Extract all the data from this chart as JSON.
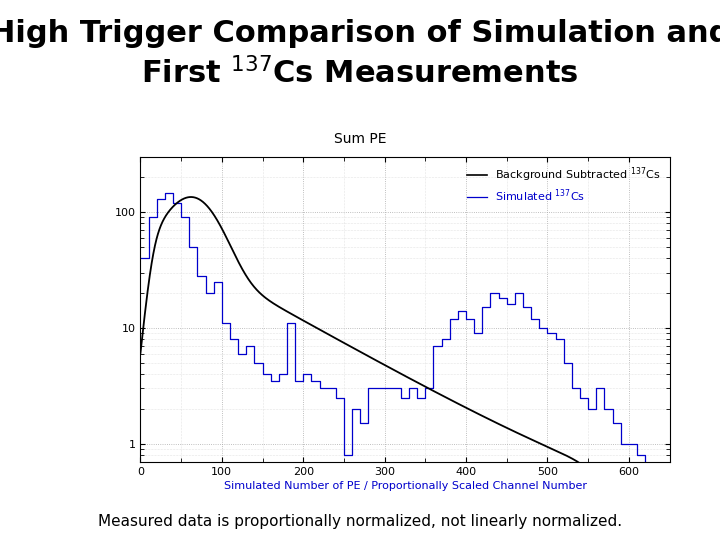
{
  "title_line1": "High Trigger Comparison of Simulation and",
  "title_line2": "First $^{137}$Cs Measurements",
  "subtitle": "Sum PE",
  "xlabel": "Simulated Number of PE / Proportionally Scaled Channel Number",
  "footnote": "Measured data is proportionally normalized, not linearly normalized.",
  "legend_bg_label": "Background Subtracted $^{137}$Cs",
  "legend_sim_label": "Simulated $^{137}$Cs",
  "xmin": 0,
  "xmax": 650,
  "ymin": 0.7,
  "ymax": 300,
  "bg_color": "#ffffff",
  "sim_color": "#000000",
  "meas_color": "#0000cc",
  "title_fontsize": 22,
  "subtitle_fontsize": 10,
  "axis_fontsize": 8,
  "footnote_fontsize": 11,
  "sim_bins": [
    0,
    10,
    20,
    30,
    40,
    50,
    60,
    70,
    80,
    90,
    100,
    110,
    120,
    130,
    140,
    150,
    160,
    170,
    180,
    190,
    200,
    210,
    220,
    230,
    240,
    250,
    260,
    270,
    280,
    290,
    300,
    310,
    320,
    330,
    340,
    350,
    360,
    370,
    380,
    390,
    400,
    410,
    420,
    430,
    440,
    450,
    460,
    470,
    480,
    490,
    500,
    510,
    520,
    530,
    540,
    550,
    560,
    570,
    580,
    590,
    600,
    610,
    620,
    630,
    640,
    650
  ],
  "meas_vals": [
    40,
    90,
    130,
    145,
    120,
    90,
    50,
    28,
    20,
    25,
    11,
    8,
    6,
    7,
    5,
    4,
    3.5,
    4,
    11,
    3.5,
    4,
    3.5,
    3,
    3,
    2.5,
    0.8,
    2,
    1.5,
    3,
    3,
    3,
    3,
    2.5,
    3,
    2.5,
    3,
    7,
    8,
    12,
    14,
    12,
    9,
    15,
    20,
    18,
    16,
    20,
    15,
    12,
    10,
    9,
    8,
    5,
    3,
    2.5,
    2,
    3,
    2,
    1.5,
    1,
    1,
    0.8,
    0.6,
    0.5,
    0,
    0
  ]
}
